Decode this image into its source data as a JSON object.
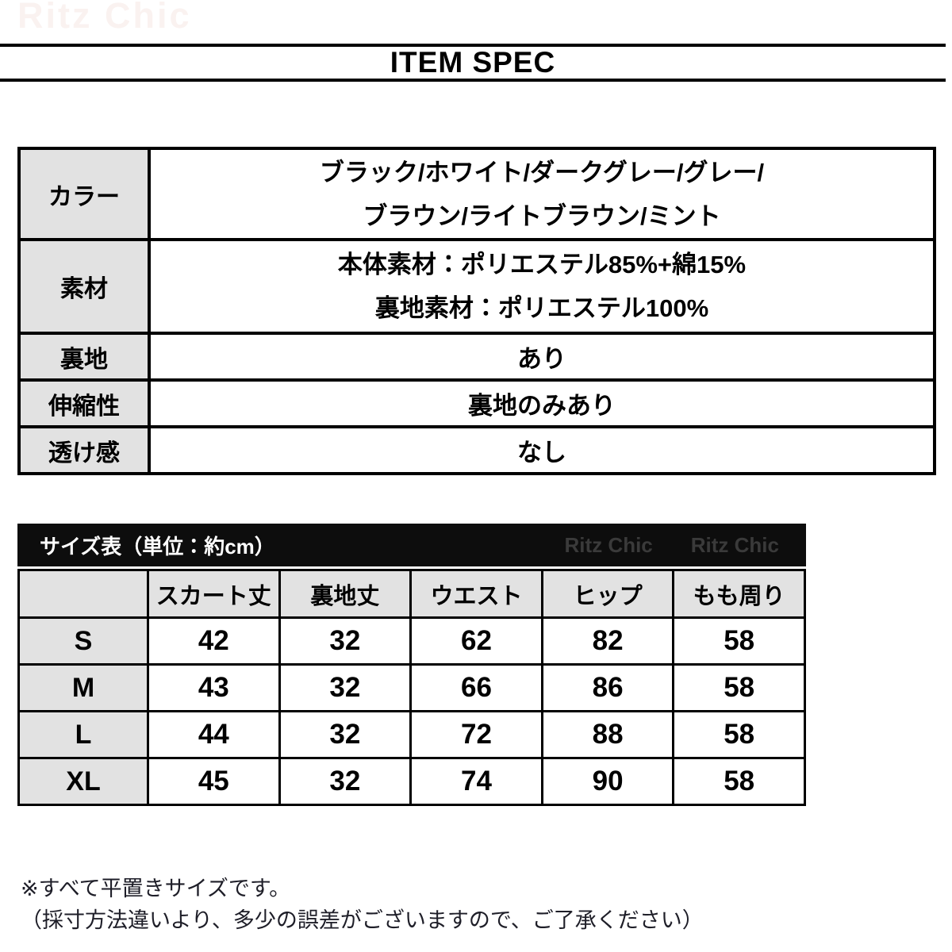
{
  "watermark": "Ritz Chic",
  "header": {
    "title": "ITEM SPEC"
  },
  "spec_table": {
    "rows": [
      {
        "label": "カラー",
        "lines": [
          "ブラック/ホワイト/ダークグレー/グレー/",
          "ブラウン/ライトブラウン/ミント"
        ]
      },
      {
        "label": "素材",
        "lines": [
          "本体素材：ポリエステル85%+綿15%",
          "裏地素材：ポリエステル100%"
        ]
      },
      {
        "label": "裏地",
        "lines": [
          "あり"
        ]
      },
      {
        "label": "伸縮性",
        "lines": [
          "裏地のみあり"
        ]
      },
      {
        "label": "透け感",
        "lines": [
          "なし"
        ]
      }
    ]
  },
  "size_section": {
    "bar_title": "サイズ表（単位：約cm）",
    "bar_brand_1": "Ritz Chic",
    "bar_brand_2": "Ritz Chic",
    "columns": [
      "スカート丈",
      "裏地丈",
      "ウエスト",
      "ヒップ",
      "もも周り"
    ],
    "rows": [
      {
        "size": "S",
        "values": [
          "42",
          "32",
          "62",
          "82",
          "58"
        ]
      },
      {
        "size": "M",
        "values": [
          "43",
          "32",
          "66",
          "86",
          "58"
        ]
      },
      {
        "size": "L",
        "values": [
          "44",
          "32",
          "72",
          "88",
          "58"
        ]
      },
      {
        "size": "XL",
        "values": [
          "45",
          "32",
          "74",
          "90",
          "58"
        ]
      }
    ]
  },
  "notes": {
    "line1": "※すべて平置きサイズです。",
    "line2": "（採寸方法違いより、多少の誤差がございますので、ご了承ください）"
  },
  "colors": {
    "label_cell_bg": "#e2e2e2",
    "border_black": "#000000",
    "bar_bg": "#0d0d0d",
    "bar_title_color": "#ffffff",
    "bar_brand_color": "#3a3a3a",
    "watermark_color": "#faf2f0",
    "note_color": "#1e1e28"
  }
}
